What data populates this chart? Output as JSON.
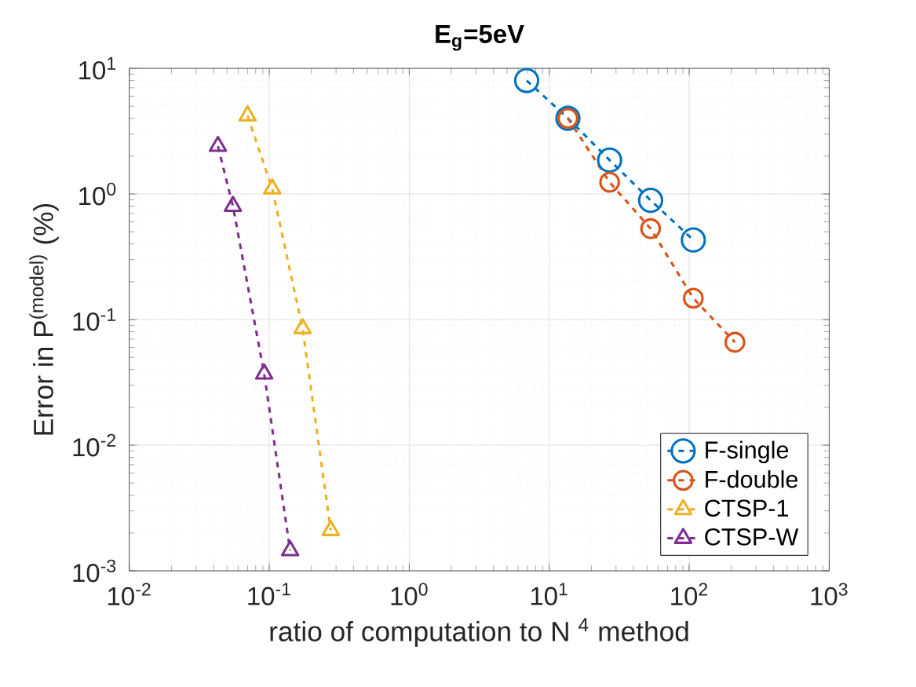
{
  "chart_data": {
    "type": "line",
    "title": "**E$_{g}$=5eV**",
    "xlabel": "ratio of computation to N $^{4}$ method",
    "ylabel": "Error in P$^{(model)}$ (%)",
    "log": "xy",
    "grid": true,
    "legend": "bottom right",
    "line_style": "dashed",
    "xlim": [
      0.01,
      1000
    ],
    "ylim": [
      0.001,
      10
    ],
    "xticks": [
      {
        "value": 0.01,
        "label": "10$^{-2}$"
      },
      {
        "value": 0.1,
        "label": "10$^{-1}$"
      },
      {
        "value": 1,
        "label": "10$^{0}$"
      },
      {
        "value": 10,
        "label": "10$^{1}$"
      },
      {
        "value": 100,
        "label": "10$^{2}$"
      },
      {
        "value": 1000,
        "label": "10$^{3}$"
      }
    ],
    "yticks": [
      {
        "value": 0.001,
        "label": "10$^{-3}$"
      },
      {
        "value": 0.01,
        "label": "10$^{-2}$"
      },
      {
        "value": 0.1,
        "label": "10$^{-1}$"
      },
      {
        "value": 1,
        "label": "10$^{0}$"
      },
      {
        "value": 10,
        "label": "10$^{1}$"
      }
    ],
    "series": [
      {
        "name": "F-single",
        "color": "#0072bd",
        "marker": "circle",
        "x": [
          6.9,
          13.6,
          27,
          53,
          107
        ],
        "values": [
          8.0,
          4.0,
          1.86,
          0.89,
          0.43
        ]
      },
      {
        "name": "F-double",
        "color": "#d95319",
        "marker": "circle",
        "x": [
          13.6,
          27,
          53,
          107,
          212
        ],
        "values": [
          4.0,
          1.24,
          0.53,
          0.148,
          0.066
        ]
      },
      {
        "name": "CTSP-1",
        "color": "#edb120",
        "marker": "triangle",
        "x": [
          0.07,
          0.105,
          0.173,
          0.275
        ],
        "values": [
          4.2,
          1.1,
          0.085,
          0.0021
        ]
      },
      {
        "name": "CTSP-W",
        "color": "#7e2f8e",
        "marker": "triangle",
        "x": [
          0.043,
          0.055,
          0.092,
          0.141
        ],
        "values": [
          2.4,
          0.8,
          0.037,
          0.00145
        ]
      }
    ]
  }
}
